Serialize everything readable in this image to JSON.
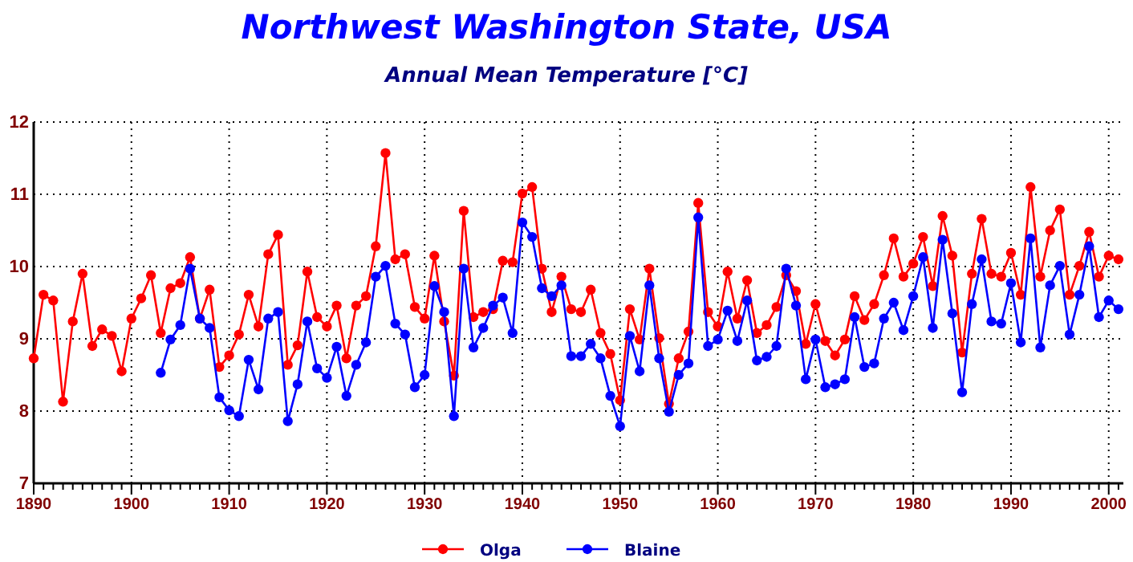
{
  "chart_data": {
    "type": "line",
    "title": "Northwest Washington State, USA",
    "subtitle": "Annual Mean Temperature [°C]",
    "x": [
      1890,
      1891,
      1892,
      1893,
      1894,
      1895,
      1896,
      1897,
      1898,
      1899,
      1900,
      1901,
      1902,
      1903,
      1904,
      1905,
      1906,
      1907,
      1908,
      1909,
      1910,
      1911,
      1912,
      1913,
      1914,
      1915,
      1916,
      1917,
      1918,
      1919,
      1920,
      1921,
      1922,
      1923,
      1924,
      1925,
      1926,
      1927,
      1928,
      1929,
      1930,
      1931,
      1932,
      1933,
      1934,
      1935,
      1936,
      1937,
      1938,
      1939,
      1940,
      1941,
      1942,
      1943,
      1944,
      1945,
      1946,
      1947,
      1948,
      1949,
      1950,
      1951,
      1952,
      1953,
      1954,
      1955,
      1956,
      1957,
      1958,
      1959,
      1960,
      1961,
      1962,
      1963,
      1964,
      1965,
      1966,
      1967,
      1968,
      1969,
      1970,
      1971,
      1972,
      1973,
      1974,
      1975,
      1976,
      1977,
      1978,
      1979,
      1980,
      1981,
      1982,
      1983,
      1984,
      1985,
      1986,
      1987,
      1988,
      1989,
      1990,
      1991,
      1992,
      1993,
      1994,
      1995,
      1996,
      1997,
      1998,
      1999,
      2000,
      2001
    ],
    "series": [
      {
        "name": "Olga",
        "color": "#ff0000",
        "values": [
          8.73,
          9.61,
          9.53,
          8.13,
          9.24,
          9.9,
          8.9,
          9.13,
          9.04,
          8.55,
          9.28,
          9.56,
          9.88,
          9.08,
          9.7,
          9.77,
          10.13,
          9.28,
          9.68,
          8.61,
          8.77,
          9.06,
          9.61,
          9.17,
          10.17,
          10.44,
          8.64,
          8.91,
          9.93,
          9.3,
          9.17,
          9.46,
          8.73,
          9.46,
          9.59,
          10.28,
          11.57,
          10.1,
          10.17,
          9.44,
          9.28,
          10.15,
          9.24,
          8.49,
          10.77,
          9.3,
          9.37,
          9.41,
          10.08,
          10.06,
          11.01,
          11.1,
          9.97,
          9.37,
          9.86,
          9.41,
          9.37,
          9.68,
          9.08,
          8.79,
          8.15,
          9.41,
          8.99,
          9.97,
          9.01,
          8.1,
          8.73,
          9.1,
          10.88,
          9.37,
          9.17,
          9.93,
          9.28,
          9.81,
          9.08,
          9.19,
          9.44,
          9.88,
          9.66,
          8.93,
          9.48,
          8.97,
          8.77,
          8.99,
          9.59,
          9.26,
          9.48,
          9.88,
          10.39,
          9.86,
          10.04,
          10.41,
          9.73,
          10.7,
          10.15,
          8.81,
          9.9,
          10.66,
          9.9,
          9.86,
          10.19,
          9.61,
          11.1,
          9.86,
          10.5,
          10.79,
          9.61,
          10.01,
          10.48,
          9.86,
          10.15,
          10.1
        ]
      },
      {
        "name": "Blaine",
        "color": "#0000ff",
        "values": [
          null,
          null,
          null,
          null,
          null,
          null,
          null,
          null,
          null,
          null,
          null,
          null,
          null,
          8.53,
          8.99,
          9.19,
          9.97,
          9.28,
          9.15,
          8.19,
          8.01,
          7.93,
          8.71,
          8.3,
          9.28,
          9.37,
          7.86,
          8.37,
          9.24,
          8.59,
          8.46,
          8.89,
          8.21,
          8.64,
          8.95,
          9.86,
          10.01,
          9.21,
          9.06,
          8.33,
          8.5,
          9.73,
          9.37,
          7.93,
          9.97,
          8.88,
          9.15,
          9.46,
          9.57,
          9.08,
          10.61,
          10.41,
          9.7,
          9.59,
          9.74,
          8.76,
          8.76,
          8.93,
          8.73,
          8.21,
          7.79,
          9.04,
          8.55,
          9.74,
          8.73,
          7.99,
          8.5,
          8.66,
          10.68,
          8.9,
          8.99,
          9.39,
          8.97,
          9.53,
          8.7,
          8.75,
          8.9,
          9.97,
          9.46,
          8.44,
          8.99,
          8.33,
          8.37,
          8.44,
          9.3,
          8.61,
          8.66,
          9.28,
          9.5,
          9.12,
          9.59,
          10.13,
          9.15,
          10.37,
          9.35,
          8.26,
          9.48,
          10.1,
          9.24,
          9.21,
          9.77,
          8.95,
          10.39,
          8.88,
          9.74,
          10.01,
          9.06,
          9.61,
          10.28,
          9.3,
          9.53,
          9.41
        ]
      }
    ],
    "xlim": [
      1890,
      2001.5
    ],
    "xticks": [
      1890,
      {
        "value": 1891,
        "label": null
      },
      {
        "value": 1892,
        "label": null
      },
      {
        "value": 1893,
        "label": null
      },
      {
        "value": 1894,
        "label": null
      },
      {
        "value": 1895,
        "label": null
      },
      {
        "value": 1896,
        "label": null
      },
      {
        "value": 1897,
        "label": null
      },
      {
        "value": 1898,
        "label": null
      },
      {
        "value": 1899,
        "label": null
      },
      1900,
      {
        "value": 1901,
        "label": null
      },
      {
        "value": 1902,
        "label": null
      },
      {
        "value": 1903,
        "label": null
      },
      {
        "value": 1904,
        "label": null
      },
      {
        "value": 1905,
        "label": null
      },
      {
        "value": 1906,
        "label": null
      },
      {
        "value": 1907,
        "label": null
      },
      {
        "value": 1908,
        "label": null
      },
      {
        "value": 1909,
        "label": null
      },
      1910,
      {
        "value": 1911,
        "label": null
      },
      {
        "value": 1912,
        "label": null
      },
      {
        "value": 1913,
        "label": null
      },
      {
        "value": 1914,
        "label": null
      },
      {
        "value": 1915,
        "label": null
      },
      {
        "value": 1916,
        "label": null
      },
      {
        "value": 1917,
        "label": null
      },
      {
        "value": 1918,
        "label": null
      },
      {
        "value": 1919,
        "label": null
      },
      1920,
      {
        "value": 1921,
        "label": null
      },
      {
        "value": 1922,
        "label": null
      },
      {
        "value": 1923,
        "label": null
      },
      {
        "value": 1924,
        "label": null
      },
      {
        "value": 1925,
        "label": null
      },
      {
        "value": 1926,
        "label": null
      },
      {
        "value": 1927,
        "label": null
      },
      {
        "value": 1928,
        "label": null
      },
      {
        "value": 1929,
        "label": null
      },
      1930,
      {
        "value": 1931,
        "label": null
      },
      {
        "value": 1932,
        "label": null
      },
      {
        "value": 1933,
        "label": null
      },
      {
        "value": 1934,
        "label": null
      },
      {
        "value": 1935,
        "label": null
      },
      {
        "value": 1936,
        "label": null
      },
      {
        "value": 1937,
        "label": null
      },
      {
        "value": 1938,
        "label": null
      },
      {
        "value": 1939,
        "label": null
      },
      1940,
      {
        "value": 1941,
        "label": null
      },
      {
        "value": 1942,
        "label": null
      },
      {
        "value": 1943,
        "label": null
      },
      {
        "value": 1944,
        "label": null
      },
      {
        "value": 1945,
        "label": null
      },
      {
        "value": 1946,
        "label": null
      },
      {
        "value": 1947,
        "label": null
      },
      {
        "value": 1948,
        "label": null
      },
      {
        "value": 1949,
        "label": null
      },
      1950,
      {
        "value": 1951,
        "label": null
      },
      {
        "value": 1952,
        "label": null
      },
      {
        "value": 1953,
        "label": null
      },
      {
        "value": 1954,
        "label": null
      },
      {
        "value": 1955,
        "label": null
      },
      {
        "value": 1956,
        "label": null
      },
      {
        "value": 1957,
        "label": null
      },
      {
        "value": 1958,
        "label": null
      },
      {
        "value": 1959,
        "label": null
      },
      1960,
      {
        "value": 1961,
        "label": null
      },
      {
        "value": 1962,
        "label": null
      },
      {
        "value": 1963,
        "label": null
      },
      {
        "value": 1964,
        "label": null
      },
      {
        "value": 1965,
        "label": null
      },
      {
        "value": 1966,
        "label": null
      },
      {
        "value": 1967,
        "label": null
      },
      {
        "value": 1968,
        "label": null
      },
      {
        "value": 1969,
        "label": null
      },
      1970,
      {
        "value": 1971,
        "label": null
      },
      {
        "value": 1972,
        "label": null
      },
      {
        "value": 1973,
        "label": null
      },
      {
        "value": 1974,
        "label": null
      },
      {
        "value": 1975,
        "label": null
      },
      {
        "value": 1976,
        "label": null
      },
      {
        "value": 1977,
        "label": null
      },
      {
        "value": 1978,
        "label": null
      },
      {
        "value": 1979,
        "label": null
      },
      1980,
      {
        "value": 1981,
        "label": null
      },
      {
        "value": 1982,
        "label": null
      },
      {
        "value": 1983,
        "label": null
      },
      {
        "value": 1984,
        "label": null
      },
      {
        "value": 1985,
        "label": null
      },
      {
        "value": 1986,
        "label": null
      },
      {
        "value": 1987,
        "label": null
      },
      {
        "value": 1988,
        "label": null
      },
      {
        "value": 1989,
        "label": null
      },
      1990,
      {
        "value": 1991,
        "label": null
      },
      {
        "value": 1992,
        "label": null
      },
      {
        "value": 1993,
        "label": null
      },
      {
        "value": 1994,
        "label": null
      },
      {
        "value": 1995,
        "label": null
      },
      {
        "value": 1996,
        "label": null
      },
      {
        "value": 1997,
        "label": null
      },
      {
        "value": 1998,
        "label": null
      },
      {
        "value": 1999,
        "label": null
      },
      2000,
      {
        "value": 2001,
        "label": null
      }
    ],
    "ylim": [
      7,
      12
    ],
    "yticks": [
      7,
      8,
      9,
      10,
      11,
      12
    ],
    "grid": true,
    "legend": "bottom",
    "marker": "circle",
    "line_style": "solid"
  }
}
